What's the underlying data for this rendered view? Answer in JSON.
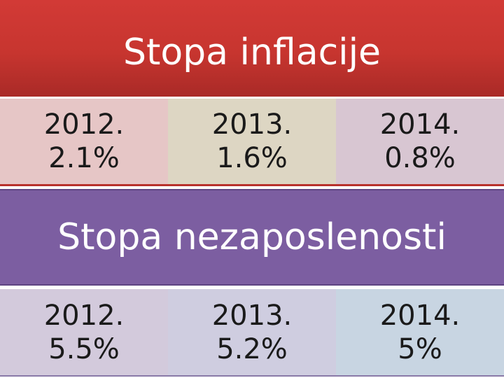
{
  "inflation": {
    "title": "Stopa inflacije",
    "cells": [
      {
        "year": "2012.",
        "value": "2.1%",
        "bg": "#e6c6c6"
      },
      {
        "year": "2013.",
        "value": "1.6%",
        "bg": "#ddd6c3"
      },
      {
        "year": "2014.",
        "value": "0.8%",
        "bg": "#d8c6d2"
      }
    ],
    "banner_color": "#c7352f"
  },
  "unemployment": {
    "title": "Stopa nezaposlenosti",
    "cells": [
      {
        "year": "2012.",
        "value": "5.5%",
        "bg": "#d3cadc"
      },
      {
        "year": "2013.",
        "value": "5.2%",
        "bg": "#cfcde0"
      },
      {
        "year": "2014.",
        "value": "5%",
        "bg": "#c8d5e2"
      }
    ],
    "banner_color": "#7c5ea1"
  }
}
